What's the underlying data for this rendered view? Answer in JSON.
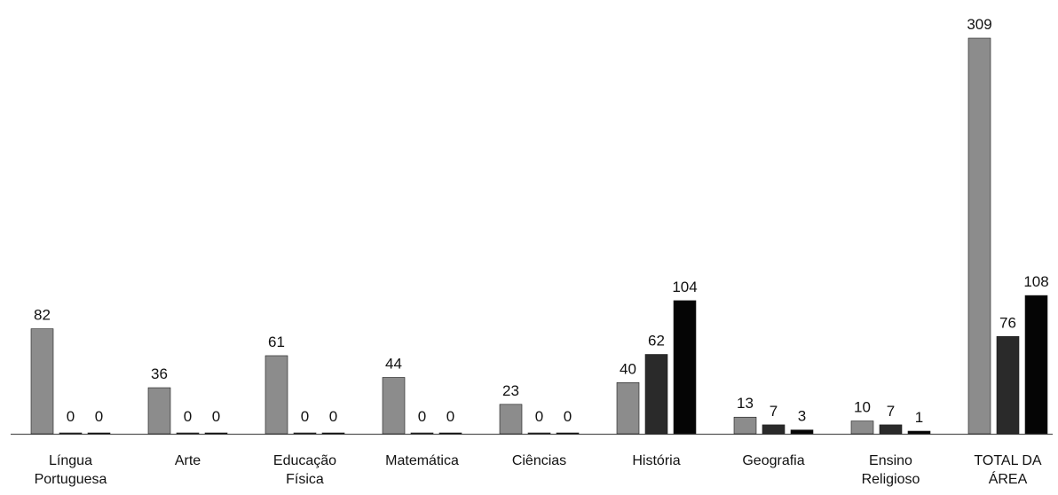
{
  "chart_data": {
    "type": "bar",
    "categories": [
      [
        "Língua",
        "Portuguesa"
      ],
      [
        "Arte"
      ],
      [
        "Educação",
        "Física"
      ],
      [
        "Matemática"
      ],
      [
        "Ciências"
      ],
      [
        "História"
      ],
      [
        "Geografia"
      ],
      [
        "Ensino",
        "Religioso"
      ],
      [
        "TOTAL DA",
        "ÁREA"
      ]
    ],
    "series": [
      {
        "values": [
          82,
          36,
          61,
          44,
          23,
          40,
          13,
          10,
          309
        ],
        "color": "#8c8c8c"
      },
      {
        "values": [
          0,
          0,
          0,
          0,
          0,
          62,
          7,
          7,
          76
        ],
        "color": "#2a2a2a"
      },
      {
        "values": [
          0,
          0,
          0,
          0,
          0,
          104,
          3,
          1,
          108
        ],
        "color": "#050505"
      }
    ],
    "title": "",
    "xlabel": "",
    "ylabel": "",
    "ylim": [
      0,
      309
    ],
    "grid": false,
    "legend": "none"
  }
}
